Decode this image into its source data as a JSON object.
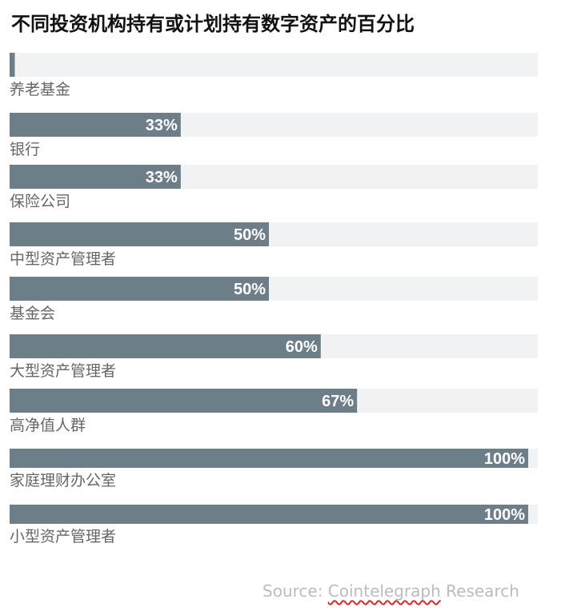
{
  "chart_data": {
    "type": "bar",
    "orientation": "horizontal",
    "title": "不同投资机构持有或计划持有数字资产的百分比",
    "categories": [
      "养老基金",
      "银行",
      "保险公司",
      "中型资产管理者",
      "基金会",
      "大型资产管理者",
      "高净值人群",
      "家庭理财办公室",
      "小型资产管理者"
    ],
    "values": [
      1,
      33,
      33,
      50,
      50,
      60,
      67,
      100,
      100
    ],
    "value_labels": [
      "",
      "33%",
      "33%",
      "50%",
      "50%",
      "60%",
      "67%",
      "100%",
      "100%"
    ],
    "xlim": [
      0,
      100
    ],
    "unit": "%",
    "colors": {
      "bar": "#6e7e88",
      "track": "#f1f2f3",
      "label": "#666666",
      "value_text": "#ffffff"
    },
    "source": {
      "prefix": "Source: ",
      "name": "Cointelegraph",
      "suffix": " Research"
    }
  }
}
